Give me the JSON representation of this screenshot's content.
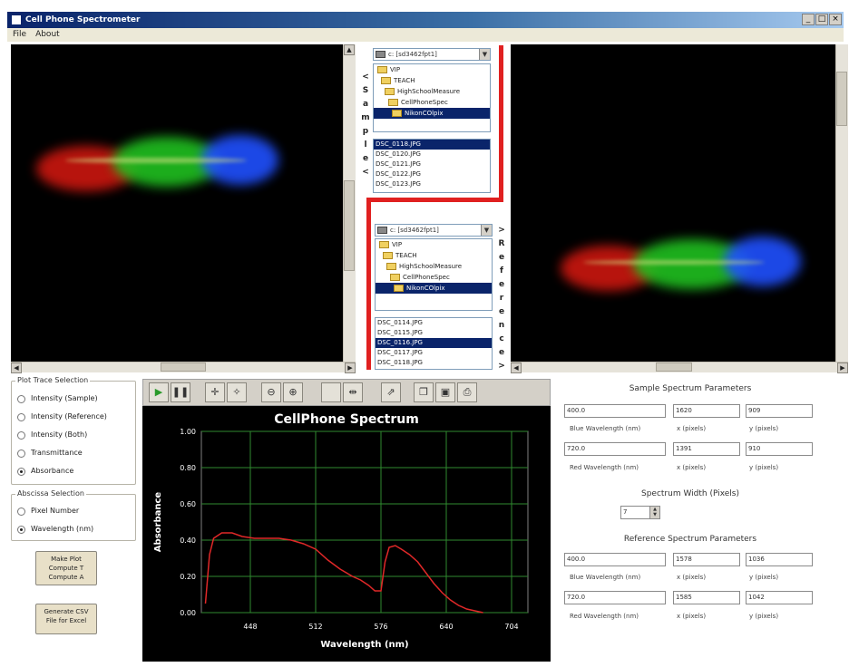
{
  "window": {
    "title": "Cell Phone Spectrometer",
    "controls": [
      "_",
      "□",
      "×"
    ]
  },
  "menu": [
    "File",
    "About"
  ],
  "sample_browser": {
    "drive": "c: [sd3462fpt1]",
    "folders": [
      "VIP",
      "TEACH",
      "HighSchoolMeasure",
      "CellPhoneSpec",
      "NikonCOlpix"
    ],
    "selected_folder": "NikonCOlpix",
    "files": [
      "DSC_0118.JPG",
      "DSC_0120.JPG",
      "DSC_0121.JPG",
      "DSC_0122.JPG",
      "DSC_0123.JPG"
    ],
    "selected_file": "DSC_0118.JPG"
  },
  "sample_label": "<\nS\na\nm\np\nl\ne\n<",
  "reference_browser": {
    "drive": "c: [sd3462fpt1]",
    "folders": [
      "VIP",
      "TEACH",
      "HighSchoolMeasure",
      "CellPhoneSpec",
      "NikonCOlpix"
    ],
    "selected_folder": "NikonCOlpix",
    "files": [
      "DSC_0114.JPG",
      "DSC_0115.JPG",
      "DSC_0116.JPG",
      "DSC_0117.JPG",
      "DSC_0118.JPG"
    ],
    "selected_file": "DSC_0116.JPG"
  },
  "reference_label": ">\nR\ne\nf\ne\nr\ne\nn\nc\ne\n>",
  "plot_trace": {
    "title": "Plot Trace Selection",
    "options": [
      "Intensity (Sample)",
      "Intensity (Reference)",
      "Intensity (Both)",
      "Transmittance",
      "Absorbance"
    ],
    "selected": "Absorbance"
  },
  "abscissa": {
    "title": "Abscissa Selection",
    "options": [
      "Pixel Number",
      "Wavelength (nm)"
    ],
    "selected": "Wavelength (nm)"
  },
  "buttons": {
    "make_plot": "Make Plot\nCompute T\nCompute A",
    "generate_csv": "Generate CSV\nFile for Excel"
  },
  "toolbar_icons": [
    "play-icon",
    "pause-icon",
    "pan-icon",
    "cursor-icon",
    "zoom-out-icon",
    "zoom-in-icon",
    "blank-icon",
    "fit-icon",
    "export-icon",
    "copy-icon",
    "save-icon",
    "print-icon"
  ],
  "chart_data": {
    "type": "line",
    "title": "CellPhone Spectrum",
    "xlabel": "Wavelength (nm)",
    "ylabel": "Absorbance",
    "xlim": [
      400,
      720
    ],
    "ylim": [
      0,
      1.0
    ],
    "xticks": [
      448,
      512,
      576,
      640,
      704
    ],
    "yticks": [
      "1.00",
      "0.80",
      "0.60",
      "0.40",
      "0.20",
      "0.00"
    ],
    "grid": true,
    "color": "#e02828",
    "series": [
      {
        "x": [
          404,
          408,
          412,
          420,
          430,
          440,
          452,
          464,
          476,
          488,
          500,
          512,
          524,
          536,
          548,
          556,
          564,
          570,
          576,
          580,
          584,
          590,
          596,
          604,
          612,
          620,
          628,
          636,
          644,
          652,
          660,
          668,
          676
        ],
        "y": [
          0.05,
          0.32,
          0.41,
          0.44,
          0.44,
          0.42,
          0.41,
          0.41,
          0.41,
          0.4,
          0.38,
          0.35,
          0.29,
          0.24,
          0.2,
          0.18,
          0.15,
          0.12,
          0.12,
          0.28,
          0.36,
          0.37,
          0.35,
          0.32,
          0.28,
          0.22,
          0.16,
          0.11,
          0.07,
          0.04,
          0.02,
          0.01,
          0.0
        ]
      }
    ]
  },
  "sample_params": {
    "title": "Sample Spectrum Parameters",
    "rows": [
      {
        "fields": [
          "400.0",
          "1620",
          "909"
        ],
        "captions": [
          "Blue Wavelength (nm)",
          "x (pixels)",
          "y (pixels)"
        ]
      },
      {
        "fields": [
          "720.0",
          "1391",
          "910"
        ],
        "captions": [
          "Red Wavelength (nm)",
          "x (pixels)",
          "y (pixels)"
        ]
      }
    ]
  },
  "spectrum_width": {
    "title": "Spectrum Width (Pixels)",
    "value": "7"
  },
  "reference_params": {
    "title": "Reference Spectrum Parameters",
    "rows": [
      {
        "fields": [
          "400.0",
          "1578",
          "1036"
        ],
        "captions": [
          "Blue Wavelength (nm)",
          "x (pixels)",
          "y (pixels)"
        ]
      },
      {
        "fields": [
          "720.0",
          "1585",
          "1042"
        ],
        "captions": [
          "Red Wavelength (nm)",
          "x (pixels)",
          "y (pixels)"
        ]
      }
    ]
  }
}
